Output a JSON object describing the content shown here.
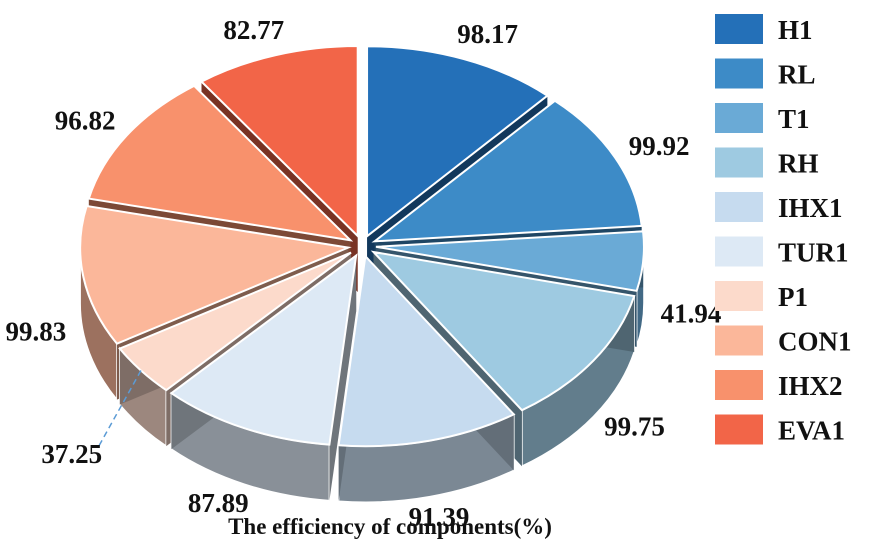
{
  "chart_data": {
    "type": "pie",
    "style": "exploded-3d",
    "xlabel": "The efficiency of components(%)",
    "legend_position": "right",
    "slices": [
      {
        "name": "H1",
        "value": 98.17,
        "color": "#2470b8"
      },
      {
        "name": "RL",
        "value": 99.92,
        "color": "#3d8bc7"
      },
      {
        "name": "T1",
        "value": 41.94,
        "color": "#6aaad6"
      },
      {
        "name": "RH",
        "value": 99.75,
        "color": "#9ecae1"
      },
      {
        "name": "IHX1",
        "value": 91.39,
        "color": "#c6dbef"
      },
      {
        "name": "TUR1",
        "value": 87.89,
        "color": "#dde9f5"
      },
      {
        "name": "P1",
        "value": 37.25,
        "color": "#fcdacb"
      },
      {
        "name": "CON1",
        "value": 99.83,
        "color": "#fbb79a"
      },
      {
        "name": "IHX2",
        "value": 96.82,
        "color": "#f8916c"
      },
      {
        "name": "EVA1",
        "value": 82.77,
        "color": "#f26548"
      }
    ]
  }
}
